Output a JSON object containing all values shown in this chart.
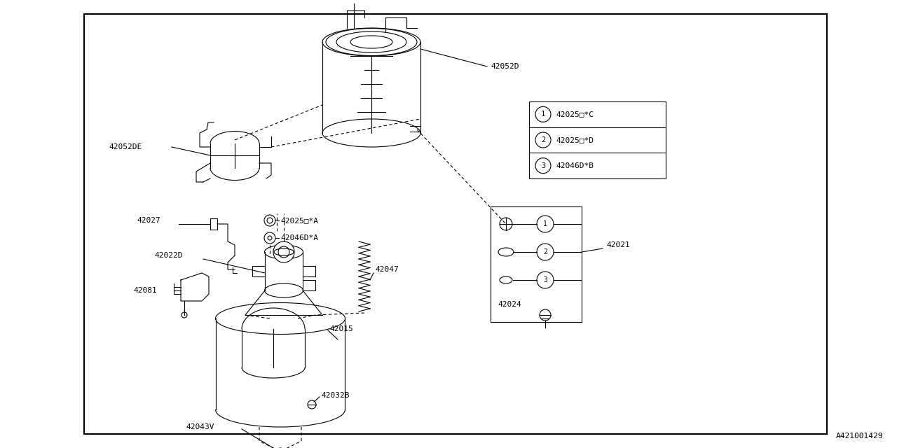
{
  "bg_color": "#ffffff",
  "border_color": "#000000",
  "line_color": "#000000",
  "catalog_number": "A421001429",
  "figw": 12.8,
  "figh": 6.4,
  "dpi": 100,
  "legend_items": [
    {
      "num": "1",
      "code": "42025□*C"
    },
    {
      "num": "2",
      "code": "42025□*D"
    },
    {
      "num": "3",
      "code": "42046D*B"
    }
  ]
}
